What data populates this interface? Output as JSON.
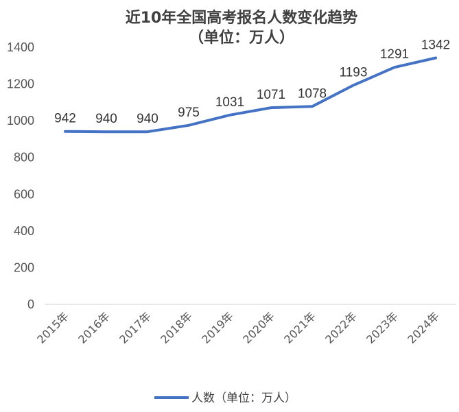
{
  "chart_data": {
    "type": "line",
    "title_line1": "近10年全国高考报名人数变化趋势",
    "title_line2": "（单位：万人）",
    "categories": [
      "2015年",
      "2016年",
      "2017年",
      "2018年",
      "2019年",
      "2020年",
      "2021年",
      "2022年",
      "2023年",
      "2024年"
    ],
    "series": [
      {
        "name": "人数（单位：万人）",
        "values": [
          942,
          940,
          940,
          975,
          1031,
          1071,
          1078,
          1193,
          1291,
          1342
        ],
        "color": "#4472C4"
      }
    ],
    "yticks": [
      "0",
      "200",
      "400",
      "600",
      "800",
      "1000",
      "1200",
      "1400"
    ],
    "ylim": [
      0,
      1400
    ],
    "grid": false,
    "legend_position": "bottom"
  }
}
